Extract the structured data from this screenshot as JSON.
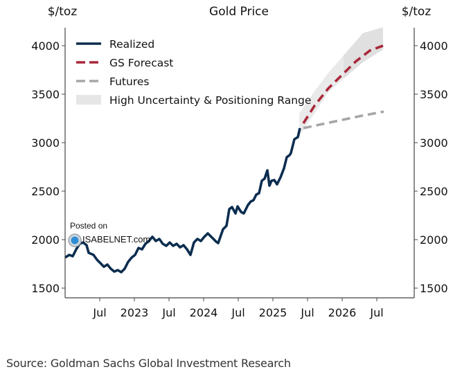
{
  "chart_data": {
    "type": "line",
    "title": "Gold Price",
    "ylabel_left": "$/toz",
    "ylabel_right": "$/toz",
    "xlabel": "",
    "ylim": [
      1420,
      4200
    ],
    "xlim": [
      2022.0,
      2027.05
    ],
    "yticks": [
      1500,
      2000,
      2500,
      3000,
      3500,
      4000
    ],
    "xticks": [
      {
        "x": 2022.5,
        "label": "Jul"
      },
      {
        "x": 2023.0,
        "label": "2023"
      },
      {
        "x": 2023.5,
        "label": "Jul"
      },
      {
        "x": 2024.0,
        "label": "2024"
      },
      {
        "x": 2024.5,
        "label": "Jul"
      },
      {
        "x": 2025.0,
        "label": "2025"
      },
      {
        "x": 2025.5,
        "label": "Jul"
      },
      {
        "x": 2026.0,
        "label": "2026"
      },
      {
        "x": 2026.5,
        "label": "Jul"
      }
    ],
    "grid": false,
    "legend": {
      "placement": "top-left",
      "entries": [
        {
          "label": "Realized",
          "style": "solid",
          "color": "#0b2d4f"
        },
        {
          "label": "GS Forecast",
          "style": "dashed",
          "color": "#a8283a"
        },
        {
          "label": "Futures",
          "style": "dashed",
          "color": "#a6a6a6"
        },
        {
          "label": "High Uncertainty & Positioning Range",
          "style": "band",
          "color": "#e6e6e6"
        }
      ]
    },
    "series": [
      {
        "name": "Realized",
        "color": "#0b2d4f",
        "points": [
          [
            2022.0,
            1815
          ],
          [
            2022.06,
            1843
          ],
          [
            2022.11,
            1829
          ],
          [
            2022.16,
            1900
          ],
          [
            2022.21,
            1957
          ],
          [
            2022.26,
            1971
          ],
          [
            2022.31,
            1943
          ],
          [
            2022.34,
            1864
          ],
          [
            2022.41,
            1843
          ],
          [
            2022.46,
            1793
          ],
          [
            2022.51,
            1757
          ],
          [
            2022.56,
            1721
          ],
          [
            2022.61,
            1743
          ],
          [
            2022.66,
            1700
          ],
          [
            2022.71,
            1671
          ],
          [
            2022.76,
            1686
          ],
          [
            2022.81,
            1664
          ],
          [
            2022.86,
            1700
          ],
          [
            2022.91,
            1771
          ],
          [
            2022.96,
            1814
          ],
          [
            2023.01,
            1843
          ],
          [
            2023.06,
            1914
          ],
          [
            2023.11,
            1900
          ],
          [
            2023.16,
            1957
          ],
          [
            2023.21,
            1986
          ],
          [
            2023.26,
            2029
          ],
          [
            2023.31,
            1986
          ],
          [
            2023.36,
            2007
          ],
          [
            2023.41,
            1957
          ],
          [
            2023.46,
            1936
          ],
          [
            2023.51,
            1971
          ],
          [
            2023.56,
            1936
          ],
          [
            2023.61,
            1957
          ],
          [
            2023.66,
            1921
          ],
          [
            2023.71,
            1943
          ],
          [
            2023.76,
            1900
          ],
          [
            2023.81,
            1843
          ],
          [
            2023.86,
            1971
          ],
          [
            2023.91,
            2007
          ],
          [
            2023.96,
            1986
          ],
          [
            2024.01,
            2029
          ],
          [
            2024.06,
            2064
          ],
          [
            2024.11,
            2029
          ],
          [
            2024.18,
            1979
          ],
          [
            2024.21,
            1964
          ],
          [
            2024.28,
            2107
          ],
          [
            2024.33,
            2143
          ],
          [
            2024.37,
            2314
          ],
          [
            2024.41,
            2336
          ],
          [
            2024.46,
            2271
          ],
          [
            2024.49,
            2343
          ],
          [
            2024.54,
            2286
          ],
          [
            2024.58,
            2271
          ],
          [
            2024.64,
            2357
          ],
          [
            2024.68,
            2393
          ],
          [
            2024.72,
            2407
          ],
          [
            2024.76,
            2464
          ],
          [
            2024.8,
            2479
          ],
          [
            2024.84,
            2607
          ],
          [
            2024.88,
            2629
          ],
          [
            2024.92,
            2714
          ],
          [
            2024.95,
            2557
          ],
          [
            2024.98,
            2607
          ],
          [
            2025.02,
            2614
          ],
          [
            2025.06,
            2571
          ],
          [
            2025.11,
            2643
          ],
          [
            2025.16,
            2736
          ],
          [
            2025.2,
            2850
          ],
          [
            2025.24,
            2871
          ],
          [
            2025.26,
            2893
          ],
          [
            2025.31,
            3036
          ],
          [
            2025.36,
            3057
          ],
          [
            2025.39,
            3150
          ]
        ]
      },
      {
        "name": "GS Forecast",
        "color": "#a8283a",
        "points": [
          [
            2025.44,
            3200
          ],
          [
            2025.6,
            3380
          ],
          [
            2025.8,
            3560
          ],
          [
            2026.0,
            3700
          ],
          [
            2026.2,
            3840
          ],
          [
            2026.4,
            3950
          ],
          [
            2026.59,
            4000
          ]
        ]
      },
      {
        "name": "Futures",
        "color": "#a6a6a6",
        "points": [
          [
            2025.44,
            3150
          ],
          [
            2025.7,
            3190
          ],
          [
            2026.0,
            3235
          ],
          [
            2026.3,
            3280
          ],
          [
            2026.6,
            3320
          ]
        ]
      }
    ],
    "bands": [
      {
        "name": "High Uncertainty & Positioning Range",
        "color": "#e6e6e6",
        "upper": [
          [
            2025.38,
            3300
          ],
          [
            2025.6,
            3530
          ],
          [
            2025.8,
            3720
          ],
          [
            2026.02,
            3900
          ],
          [
            2026.3,
            4130
          ],
          [
            2026.59,
            4190
          ]
        ],
        "lower": [
          [
            2025.38,
            3070
          ],
          [
            2025.6,
            3300
          ],
          [
            2025.8,
            3520
          ],
          [
            2026.02,
            3660
          ],
          [
            2026.3,
            3830
          ],
          [
            2026.59,
            3960
          ]
        ]
      }
    ],
    "watermark": {
      "line1": "Posted on",
      "line2": "ISABELNET.com"
    }
  },
  "source": "Source: Goldman Sachs Global Investment Research"
}
